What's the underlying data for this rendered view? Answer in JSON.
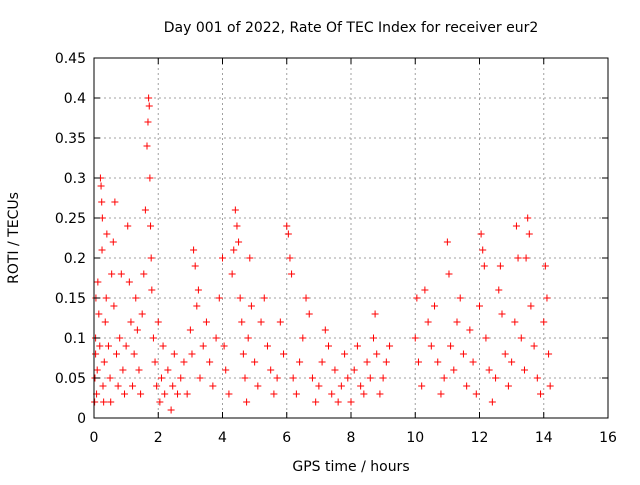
{
  "chart_data": {
    "type": "scatter",
    "title": "Day 001 of 2022, Rate Of TEC Index for receiver eur2",
    "xlabel": "GPS time / hours",
    "ylabel": "ROTI / TECUs",
    "xlim": [
      0,
      16
    ],
    "ylim": [
      0,
      0.45
    ],
    "xticks": [
      0,
      2,
      4,
      6,
      8,
      10,
      12,
      14,
      16
    ],
    "yticks": [
      0,
      0.05,
      0.1,
      0.15,
      0.2,
      0.25,
      0.3,
      0.35,
      0.4,
      0.45
    ],
    "xtick_labels": [
      "0",
      "2",
      "4",
      "6",
      "8",
      "10",
      "12",
      "14",
      "16"
    ],
    "ytick_labels": [
      "0",
      "0.05",
      "0.1",
      "0.15",
      "0.2",
      "0.25",
      "0.3",
      "0.35",
      "0.4",
      "0.45"
    ],
    "grid": true,
    "marker": "+",
    "color": "#ff0000",
    "series": [
      {
        "values": [
          [
            0.02,
            0.02
          ],
          [
            0.03,
            0.05
          ],
          [
            0.05,
            0.1
          ],
          [
            0.06,
            0.15
          ],
          [
            0.05,
            0.08
          ],
          [
            0.08,
            0.03
          ],
          [
            0.1,
            0.06
          ],
          [
            0.12,
            0.17
          ],
          [
            0.15,
            0.13
          ],
          [
            0.18,
            0.09
          ],
          [
            0.2,
            0.3
          ],
          [
            0.22,
            0.29
          ],
          [
            0.24,
            0.27
          ],
          [
            0.26,
            0.25
          ],
          [
            0.25,
            0.21
          ],
          [
            0.28,
            0.04
          ],
          [
            0.3,
            0.02
          ],
          [
            0.32,
            0.07
          ],
          [
            0.35,
            0.12
          ],
          [
            0.38,
            0.15
          ],
          [
            0.4,
            0.23
          ],
          [
            0.45,
            0.09
          ],
          [
            0.5,
            0.05
          ],
          [
            0.52,
            0.02
          ],
          [
            0.55,
            0.18
          ],
          [
            0.6,
            0.22
          ],
          [
            0.62,
            0.14
          ],
          [
            0.65,
            0.27
          ],
          [
            0.7,
            0.08
          ],
          [
            0.75,
            0.04
          ],
          [
            0.8,
            0.1
          ],
          [
            0.85,
            0.18
          ],
          [
            0.9,
            0.06
          ],
          [
            0.95,
            0.03
          ],
          [
            1.0,
            0.09
          ],
          [
            1.05,
            0.24
          ],
          [
            1.1,
            0.17
          ],
          [
            1.15,
            0.12
          ],
          [
            1.2,
            0.04
          ],
          [
            1.25,
            0.08
          ],
          [
            1.3,
            0.15
          ],
          [
            1.35,
            0.11
          ],
          [
            1.4,
            0.06
          ],
          [
            1.45,
            0.03
          ],
          [
            1.5,
            0.13
          ],
          [
            1.55,
            0.18
          ],
          [
            1.6,
            0.26
          ],
          [
            1.65,
            0.34
          ],
          [
            1.68,
            0.37
          ],
          [
            1.7,
            0.4
          ],
          [
            1.72,
            0.39
          ],
          [
            1.74,
            0.3
          ],
          [
            1.76,
            0.24
          ],
          [
            1.78,
            0.2
          ],
          [
            1.8,
            0.16
          ],
          [
            1.85,
            0.1
          ],
          [
            1.9,
            0.07
          ],
          [
            1.95,
            0.04
          ],
          [
            2.0,
            0.12
          ],
          [
            2.05,
            0.02
          ],
          [
            2.1,
            0.05
          ],
          [
            2.15,
            0.09
          ],
          [
            2.2,
            0.03
          ],
          [
            2.3,
            0.06
          ],
          [
            2.4,
            0.01
          ],
          [
            2.45,
            0.04
          ],
          [
            2.5,
            0.08
          ],
          [
            2.6,
            0.03
          ],
          [
            2.7,
            0.05
          ],
          [
            2.8,
            0.07
          ],
          [
            2.9,
            0.03
          ],
          [
            3.0,
            0.11
          ],
          [
            3.05,
            0.08
          ],
          [
            3.1,
            0.21
          ],
          [
            3.15,
            0.19
          ],
          [
            3.2,
            0.14
          ],
          [
            3.25,
            0.16
          ],
          [
            3.3,
            0.05
          ],
          [
            3.4,
            0.09
          ],
          [
            3.5,
            0.12
          ],
          [
            3.6,
            0.07
          ],
          [
            3.7,
            0.04
          ],
          [
            3.8,
            0.1
          ],
          [
            3.9,
            0.15
          ],
          [
            4.0,
            0.2
          ],
          [
            4.05,
            0.09
          ],
          [
            4.1,
            0.06
          ],
          [
            4.2,
            0.03
          ],
          [
            4.3,
            0.18
          ],
          [
            4.35,
            0.21
          ],
          [
            4.4,
            0.26
          ],
          [
            4.45,
            0.24
          ],
          [
            4.5,
            0.22
          ],
          [
            4.55,
            0.15
          ],
          [
            4.6,
            0.12
          ],
          [
            4.65,
            0.08
          ],
          [
            4.7,
            0.05
          ],
          [
            4.75,
            0.02
          ],
          [
            4.8,
            0.1
          ],
          [
            4.85,
            0.2
          ],
          [
            4.9,
            0.14
          ],
          [
            5.0,
            0.07
          ],
          [
            5.1,
            0.04
          ],
          [
            5.2,
            0.12
          ],
          [
            5.3,
            0.15
          ],
          [
            5.4,
            0.09
          ],
          [
            5.5,
            0.06
          ],
          [
            5.6,
            0.03
          ],
          [
            5.7,
            0.05
          ],
          [
            5.8,
            0.12
          ],
          [
            5.9,
            0.08
          ],
          [
            6.0,
            0.24
          ],
          [
            6.05,
            0.23
          ],
          [
            6.1,
            0.2
          ],
          [
            6.15,
            0.18
          ],
          [
            6.2,
            0.05
          ],
          [
            6.3,
            0.03
          ],
          [
            6.4,
            0.07
          ],
          [
            6.5,
            0.1
          ],
          [
            6.6,
            0.15
          ],
          [
            6.7,
            0.13
          ],
          [
            6.8,
            0.05
          ],
          [
            6.9,
            0.02
          ],
          [
            7.0,
            0.04
          ],
          [
            7.1,
            0.07
          ],
          [
            7.2,
            0.11
          ],
          [
            7.3,
            0.09
          ],
          [
            7.4,
            0.03
          ],
          [
            7.5,
            0.06
          ],
          [
            7.6,
            0.02
          ],
          [
            7.7,
            0.04
          ],
          [
            7.8,
            0.08
          ],
          [
            7.9,
            0.05
          ],
          [
            8.0,
            0.02
          ],
          [
            8.1,
            0.06
          ],
          [
            8.2,
            0.09
          ],
          [
            8.3,
            0.04
          ],
          [
            8.4,
            0.03
          ],
          [
            8.5,
            0.07
          ],
          [
            8.6,
            0.05
          ],
          [
            8.7,
            0.1
          ],
          [
            8.75,
            0.13
          ],
          [
            8.8,
            0.08
          ],
          [
            8.9,
            0.03
          ],
          [
            9.0,
            0.05
          ],
          [
            9.1,
            0.07
          ],
          [
            9.2,
            0.09
          ],
          [
            10.0,
            0.1
          ],
          [
            10.05,
            0.15
          ],
          [
            10.1,
            0.07
          ],
          [
            10.2,
            0.04
          ],
          [
            10.3,
            0.16
          ],
          [
            10.4,
            0.12
          ],
          [
            10.5,
            0.09
          ],
          [
            10.6,
            0.14
          ],
          [
            10.7,
            0.07
          ],
          [
            10.8,
            0.03
          ],
          [
            10.9,
            0.05
          ],
          [
            11.0,
            0.22
          ],
          [
            11.05,
            0.18
          ],
          [
            11.1,
            0.09
          ],
          [
            11.2,
            0.06
          ],
          [
            11.3,
            0.12
          ],
          [
            11.4,
            0.15
          ],
          [
            11.5,
            0.08
          ],
          [
            11.6,
            0.04
          ],
          [
            11.7,
            0.11
          ],
          [
            11.8,
            0.07
          ],
          [
            11.9,
            0.03
          ],
          [
            12.0,
            0.14
          ],
          [
            12.05,
            0.23
          ],
          [
            12.1,
            0.21
          ],
          [
            12.15,
            0.19
          ],
          [
            12.2,
            0.1
          ],
          [
            12.3,
            0.06
          ],
          [
            12.4,
            0.02
          ],
          [
            12.5,
            0.05
          ],
          [
            12.6,
            0.16
          ],
          [
            12.65,
            0.19
          ],
          [
            12.7,
            0.13
          ],
          [
            12.8,
            0.08
          ],
          [
            12.9,
            0.04
          ],
          [
            13.0,
            0.07
          ],
          [
            13.1,
            0.12
          ],
          [
            13.15,
            0.24
          ],
          [
            13.2,
            0.2
          ],
          [
            13.3,
            0.1
          ],
          [
            13.4,
            0.06
          ],
          [
            13.45,
            0.2
          ],
          [
            13.5,
            0.25
          ],
          [
            13.55,
            0.23
          ],
          [
            13.6,
            0.14
          ],
          [
            13.7,
            0.09
          ],
          [
            13.8,
            0.05
          ],
          [
            13.9,
            0.03
          ],
          [
            14.0,
            0.12
          ],
          [
            14.05,
            0.19
          ],
          [
            14.1,
            0.15
          ],
          [
            14.15,
            0.08
          ],
          [
            14.2,
            0.04
          ]
        ]
      }
    ]
  }
}
